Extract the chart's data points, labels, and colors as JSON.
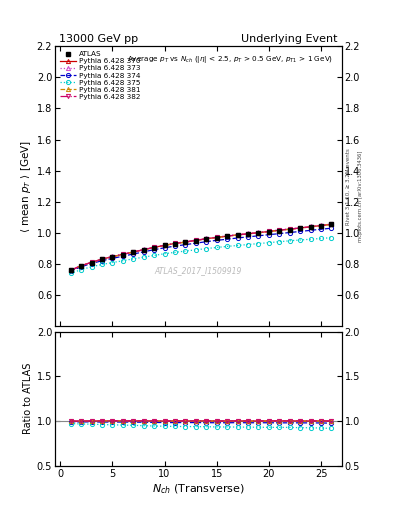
{
  "title_left": "13000 GeV pp",
  "title_right": "Underlying Event",
  "watermark": "ATLAS_2017_I1509919",
  "right_label": "mcplots.cern.ch [arXiv:1306.3436]",
  "right_label2": "Rivet 3.1.10, ≥ 3.2M events",
  "xlabel": "$N_{ch}$ (Transverse)",
  "ylabel_main": "⟨ mean $p_T$ ⟩ [GeV]",
  "ylabel_ratio": "Ratio to ATLAS",
  "ylim_main": [
    0.4,
    2.2
  ],
  "ylim_ratio": [
    0.5,
    2.0
  ],
  "yticks_main": [
    0.6,
    0.8,
    1.0,
    1.2,
    1.4,
    1.6,
    1.8,
    2.0,
    2.2
  ],
  "yticks_ratio": [
    0.5,
    1.0,
    1.5,
    2.0
  ],
  "xlim": [
    -0.5,
    27
  ],
  "nch_atlas": [
    1,
    2,
    3,
    4,
    5,
    6,
    7,
    8,
    9,
    10,
    11,
    12,
    13,
    14,
    15,
    16,
    17,
    18,
    19,
    20,
    21,
    22,
    23,
    24,
    25,
    26
  ],
  "atlas_y": [
    0.76,
    0.79,
    0.81,
    0.83,
    0.845,
    0.86,
    0.875,
    0.89,
    0.905,
    0.92,
    0.93,
    0.94,
    0.95,
    0.96,
    0.97,
    0.978,
    0.985,
    0.993,
    1.0,
    1.007,
    1.015,
    1.022,
    1.03,
    1.038,
    1.045,
    1.055
  ],
  "series": [
    {
      "label": "Pythia 6.428 370",
      "color": "#cc0000",
      "marker": "^",
      "linestyle": "-",
      "y": [
        0.76,
        0.79,
        0.812,
        0.832,
        0.848,
        0.863,
        0.878,
        0.893,
        0.908,
        0.921,
        0.933,
        0.942,
        0.953,
        0.963,
        0.972,
        0.98,
        0.988,
        0.995,
        1.002,
        1.01,
        1.018,
        1.025,
        1.032,
        1.04,
        1.048,
        1.056
      ],
      "ratio": [
        1.0,
        1.0,
        1.003,
        1.002,
        1.004,
        1.003,
        1.003,
        1.003,
        1.003,
        1.001,
        1.003,
        1.002,
        1.003,
        1.003,
        1.002,
        1.002,
        1.003,
        1.002,
        1.002,
        1.003,
        1.003,
        1.003,
        1.002,
        1.002,
        1.003,
        1.001
      ]
    },
    {
      "label": "Pythia 6.428 373",
      "color": "#cc44cc",
      "marker": "^",
      "linestyle": ":",
      "y": [
        0.762,
        0.791,
        0.813,
        0.833,
        0.85,
        0.865,
        0.88,
        0.895,
        0.91,
        0.923,
        0.935,
        0.944,
        0.955,
        0.965,
        0.974,
        0.982,
        0.99,
        0.997,
        1.004,
        1.012,
        1.02,
        1.027,
        1.034,
        1.042,
        1.05,
        1.058
      ],
      "ratio": [
        1.003,
        1.001,
        1.004,
        1.004,
        1.006,
        1.006,
        1.006,
        1.006,
        1.006,
        1.003,
        1.005,
        1.004,
        1.005,
        1.005,
        1.004,
        1.004,
        1.005,
        1.004,
        1.004,
        1.005,
        1.005,
        1.005,
        1.004,
        1.004,
        1.005,
        1.003
      ]
    },
    {
      "label": "Pythia 6.428 374",
      "color": "#0000cc",
      "marker": "o",
      "linestyle": "--",
      "y": [
        0.755,
        0.783,
        0.804,
        0.822,
        0.837,
        0.851,
        0.865,
        0.879,
        0.893,
        0.905,
        0.916,
        0.925,
        0.935,
        0.944,
        0.953,
        0.96,
        0.968,
        0.975,
        0.982,
        0.989,
        0.996,
        1.003,
        1.01,
        1.017,
        1.024,
        1.031
      ],
      "ratio": [
        0.993,
        0.991,
        0.992,
        0.99,
        0.99,
        0.99,
        0.989,
        0.988,
        0.986,
        0.984,
        0.984,
        0.984,
        0.984,
        0.983,
        0.982,
        0.982,
        0.983,
        0.982,
        0.982,
        0.982,
        0.981,
        0.981,
        0.981,
        0.98,
        0.98,
        0.977
      ]
    },
    {
      "label": "Pythia 6.428 375",
      "color": "#00cccc",
      "marker": "o",
      "linestyle": ":",
      "y": [
        0.74,
        0.765,
        0.783,
        0.798,
        0.81,
        0.822,
        0.834,
        0.845,
        0.856,
        0.867,
        0.876,
        0.884,
        0.892,
        0.9,
        0.907,
        0.914,
        0.92,
        0.926,
        0.932,
        0.938,
        0.944,
        0.95,
        0.955,
        0.96,
        0.965,
        0.97
      ],
      "ratio": [
        0.973,
        0.968,
        0.966,
        0.962,
        0.959,
        0.956,
        0.953,
        0.949,
        0.946,
        0.943,
        0.941,
        0.94,
        0.939,
        0.938,
        0.935,
        0.935,
        0.934,
        0.933,
        0.932,
        0.931,
        0.93,
        0.93,
        0.927,
        0.926,
        0.923,
        0.919
      ]
    },
    {
      "label": "Pythia 6.428 381",
      "color": "#cc8800",
      "marker": "^",
      "linestyle": "--",
      "y": [
        0.76,
        0.789,
        0.811,
        0.831,
        0.847,
        0.862,
        0.877,
        0.892,
        0.907,
        0.92,
        0.932,
        0.941,
        0.952,
        0.962,
        0.971,
        0.979,
        0.987,
        0.994,
        1.001,
        1.009,
        1.017,
        1.024,
        1.031,
        1.039,
        1.047,
        1.055
      ],
      "ratio": [
        1.0,
        0.999,
        1.001,
        1.001,
        1.002,
        1.002,
        1.002,
        1.002,
        1.002,
        1.0,
        1.002,
        1.001,
        1.002,
        1.002,
        1.001,
        1.001,
        1.002,
        1.001,
        1.001,
        1.002,
        1.002,
        1.002,
        1.001,
        1.001,
        1.002,
        1.0
      ]
    },
    {
      "label": "Pythia 6.428 382",
      "color": "#cc0066",
      "marker": "v",
      "linestyle": "-.",
      "y": [
        0.761,
        0.79,
        0.812,
        0.832,
        0.848,
        0.863,
        0.878,
        0.893,
        0.908,
        0.921,
        0.933,
        0.942,
        0.953,
        0.963,
        0.972,
        0.98,
        0.988,
        0.995,
        1.002,
        1.01,
        1.018,
        1.025,
        1.032,
        1.04,
        1.048,
        1.056
      ],
      "ratio": [
        1.001,
        1.0,
        1.002,
        1.002,
        1.003,
        1.003,
        1.003,
        1.003,
        1.003,
        1.001,
        1.003,
        1.002,
        1.003,
        1.003,
        1.002,
        1.002,
        1.003,
        1.002,
        1.002,
        1.003,
        1.003,
        1.003,
        1.002,
        1.002,
        1.003,
        1.001
      ]
    }
  ]
}
